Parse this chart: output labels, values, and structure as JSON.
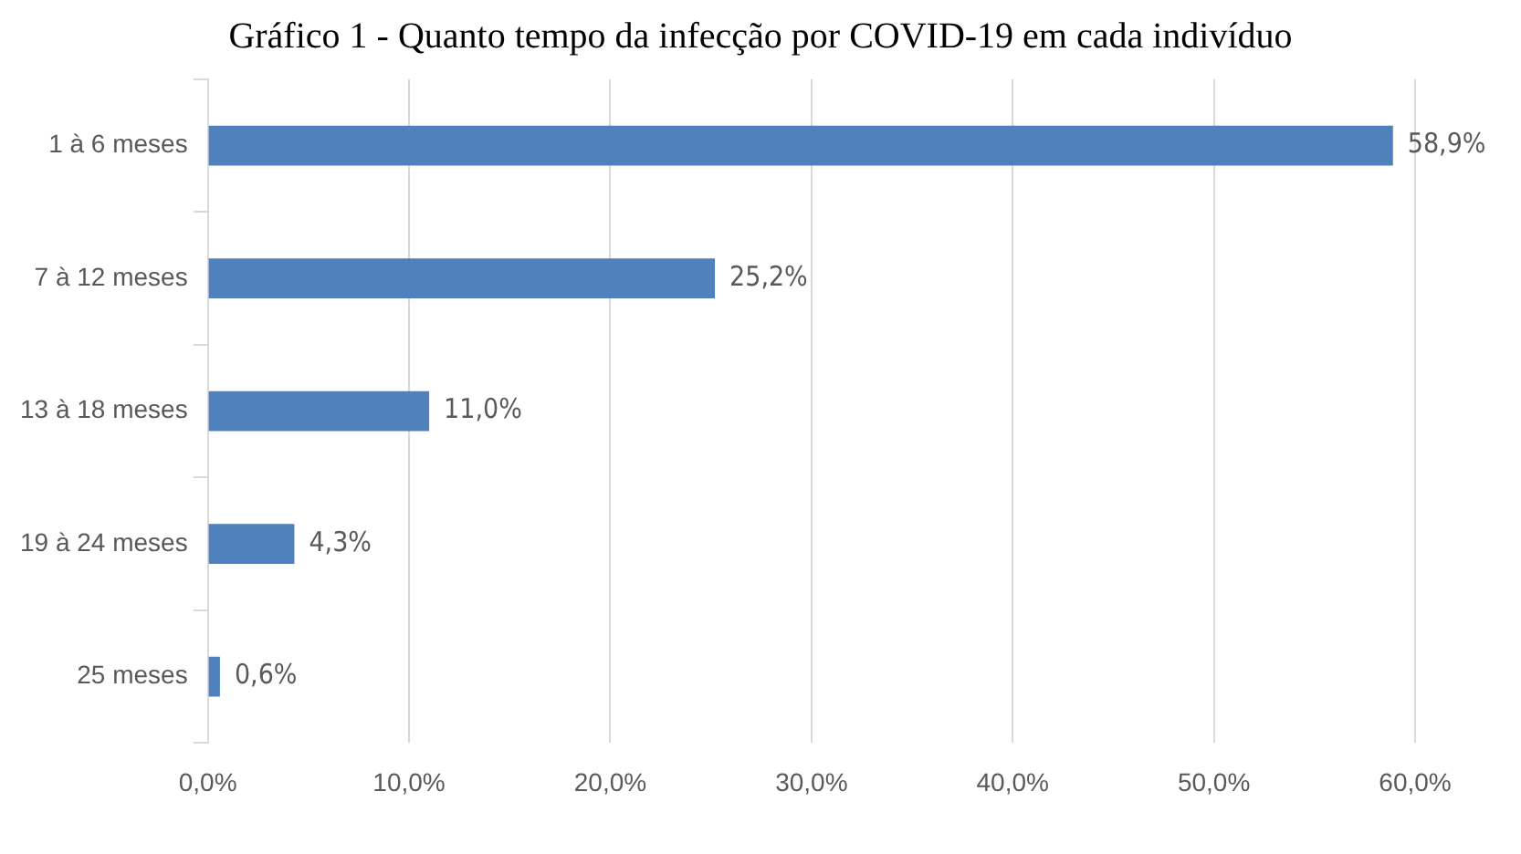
{
  "chart_data": {
    "type": "bar",
    "orientation": "horizontal",
    "title": "Gráfico 1 - Quanto tempo da infecção por COVID-19 em cada indivíduo",
    "categories": [
      "1 à 6 meses",
      "7 à 12 meses",
      "13 à 18 meses",
      "19 à 24 meses",
      "25 meses"
    ],
    "values": [
      58.9,
      25.2,
      11.0,
      4.3,
      0.6
    ],
    "color": "#4f81bd",
    "value_labels": [
      "58,9%",
      "25,2%",
      "11,0%",
      "4,3%",
      "0,6%"
    ],
    "xlim": [
      0,
      60
    ],
    "xticks": [
      {
        "value": 0,
        "label": "0,0%"
      },
      {
        "value": 10,
        "label": "10,0%"
      },
      {
        "value": 20,
        "label": "20,0%"
      },
      {
        "value": 30,
        "label": "30,0%"
      },
      {
        "value": 40,
        "label": "40,0%"
      },
      {
        "value": 50,
        "label": "50,0%"
      },
      {
        "value": 60,
        "label": "60,0%"
      }
    ],
    "grid": "x",
    "legend": false
  }
}
